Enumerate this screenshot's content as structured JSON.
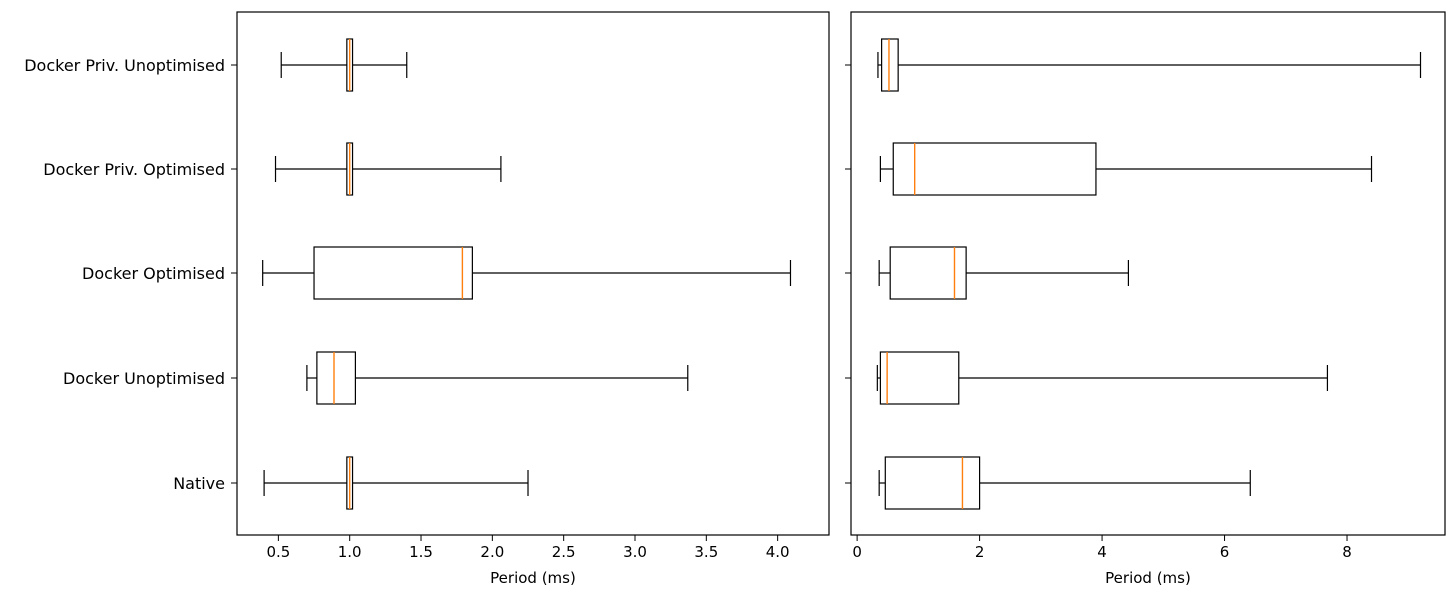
{
  "chart_data": [
    {
      "type": "boxplot",
      "orientation": "horizontal",
      "xlabel": "Period (ms)",
      "xlim": [
        0.21,
        4.36
      ],
      "xticks": [
        0.5,
        1.0,
        1.5,
        2.0,
        2.5,
        3.0,
        3.5,
        4.0
      ],
      "xtick_labels": [
        "0.5",
        "1.0",
        "1.5",
        "2.0",
        "2.5",
        "3.0",
        "3.5",
        "4.0"
      ],
      "grid": false,
      "categories": [
        "Native",
        "Docker Unoptimised",
        "Docker Optimised",
        "Docker Priv. Optimised",
        "Docker Priv. Unoptimised"
      ],
      "boxes": [
        {
          "category": "Native",
          "whisker_low": 0.4,
          "q1": 0.98,
          "median": 1.0,
          "q3": 1.02,
          "whisker_high": 2.25
        },
        {
          "category": "Docker Unoptimised",
          "whisker_low": 0.7,
          "q1": 0.77,
          "median": 0.89,
          "q3": 1.04,
          "whisker_high": 3.37
        },
        {
          "category": "Docker Optimised",
          "whisker_low": 0.39,
          "q1": 0.75,
          "median": 1.79,
          "q3": 1.86,
          "whisker_high": 4.09
        },
        {
          "category": "Docker Priv. Optimised",
          "whisker_low": 0.48,
          "q1": 0.98,
          "median": 1.0,
          "q3": 1.02,
          "whisker_high": 2.06
        },
        {
          "category": "Docker Priv. Unoptimised",
          "whisker_low": 0.52,
          "q1": 0.98,
          "median": 1.0,
          "q3": 1.02,
          "whisker_high": 1.4
        }
      ]
    },
    {
      "type": "boxplot",
      "orientation": "horizontal",
      "xlabel": "Period (ms)",
      "xlim": [
        -0.1,
        9.6
      ],
      "xticks": [
        0,
        2,
        4,
        6,
        8
      ],
      "xtick_labels": [
        "0",
        "2",
        "4",
        "6",
        "8"
      ],
      "grid": false,
      "categories": [
        "Native",
        "Docker Unoptimised",
        "Docker Optimised",
        "Docker Priv. Optimised",
        "Docker Priv. Unoptimised"
      ],
      "boxes": [
        {
          "category": "Native",
          "whisker_low": 0.36,
          "q1": 0.46,
          "median": 1.72,
          "q3": 2.0,
          "whisker_high": 6.42
        },
        {
          "category": "Docker Unoptimised",
          "whisker_low": 0.33,
          "q1": 0.38,
          "median": 0.49,
          "q3": 1.66,
          "whisker_high": 7.68
        },
        {
          "category": "Docker Optimised",
          "whisker_low": 0.36,
          "q1": 0.54,
          "median": 1.59,
          "q3": 1.78,
          "whisker_high": 4.43
        },
        {
          "category": "Docker Priv. Optimised",
          "whisker_low": 0.38,
          "q1": 0.59,
          "median": 0.94,
          "q3": 3.9,
          "whisker_high": 8.4
        },
        {
          "category": "Docker Priv. Unoptimised",
          "whisker_low": 0.34,
          "q1": 0.4,
          "median": 0.52,
          "q3": 0.67,
          "whisker_high": 9.2
        }
      ]
    }
  ],
  "colors": {
    "median": "#ff7f0e",
    "box": "#000000",
    "background": "#ffffff"
  }
}
